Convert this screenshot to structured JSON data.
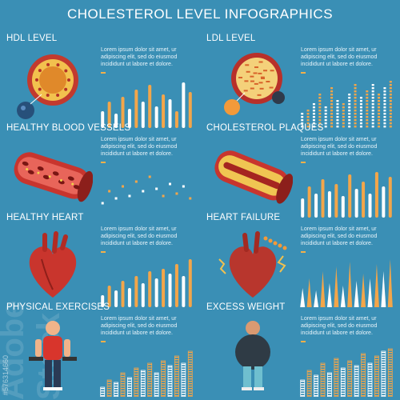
{
  "title": "CHOLESTEROL LEVEL INFOGRAPHICS",
  "colors": {
    "background": "#3a8fb5",
    "orange": "#f3a64a",
    "white": "#ffffff"
  },
  "body_text": "Lorem ipsum dolor sit amet, ur adipiscing elit, sed do eiusmod incididunt ut labore et dolore.",
  "watermark": {
    "stock_id": "#576314660",
    "logo": "Adobe Stock"
  },
  "panels": [
    {
      "heading": "HDL LEVEL",
      "icon": "hdl-particle-icon",
      "chart_style": "bars",
      "values": [
        0.35,
        0.55,
        0.3,
        0.65,
        0.4,
        0.8,
        0.55,
        0.9,
        0.45,
        0.7,
        0.6,
        0.35,
        0.95,
        0.75
      ]
    },
    {
      "heading": "LDL LEVEL",
      "icon": "ldl-particle-icon",
      "chart_style": "dots",
      "values": [
        0.3,
        0.4,
        0.55,
        0.7,
        0.45,
        0.85,
        0.6,
        0.5,
        0.75,
        0.9,
        0.65,
        0.8,
        0.95,
        0.7,
        0.85,
        1.0
      ]
    },
    {
      "heading": "HEALTHY BLOOD VESSELS",
      "icon": "blood-vessel-icon",
      "chart_style": "zigzag",
      "values": [
        0.3,
        0.55,
        0.4,
        0.65,
        0.45,
        0.75,
        0.55,
        0.85,
        0.6,
        0.45,
        0.7,
        0.5,
        0.65,
        0.4
      ]
    },
    {
      "heading": "CHOLESTEROL PLAQUES",
      "icon": "clogged-artery-icon",
      "chart_style": "bars",
      "values": [
        0.4,
        0.65,
        0.5,
        0.8,
        0.55,
        0.7,
        0.45,
        0.9,
        0.6,
        0.75,
        0.5,
        0.95,
        0.65,
        0.85
      ]
    },
    {
      "heading": "HEALTHY HEART",
      "icon": "healthy-heart-icon",
      "chart_style": "bars",
      "values": [
        0.25,
        0.45,
        0.35,
        0.55,
        0.4,
        0.65,
        0.5,
        0.75,
        0.6,
        0.8,
        0.7,
        0.9,
        0.65,
        1.0
      ]
    },
    {
      "heading": "HEART FAILURE",
      "icon": "failing-heart-icon",
      "chart_style": "spikes",
      "values": [
        0.4,
        0.6,
        0.35,
        0.75,
        0.5,
        0.85,
        0.45,
        0.95,
        0.55,
        0.7,
        0.6,
        0.9,
        0.75,
        1.0
      ]
    },
    {
      "heading": "PHYSICAL EXERCISES",
      "icon": "exercising-man-icon",
      "chart_style": "ladder",
      "values": [
        0.2,
        0.35,
        0.3,
        0.5,
        0.4,
        0.6,
        0.55,
        0.7,
        0.5,
        0.75,
        0.65,
        0.85,
        0.7,
        0.95
      ]
    },
    {
      "heading": "EXCESS WEIGHT",
      "icon": "overweight-man-icon",
      "chart_style": "ladder",
      "values": [
        0.35,
        0.55,
        0.45,
        0.7,
        0.5,
        0.8,
        0.6,
        0.75,
        0.65,
        0.9,
        0.7,
        0.85,
        0.95,
        1.0
      ]
    }
  ]
}
